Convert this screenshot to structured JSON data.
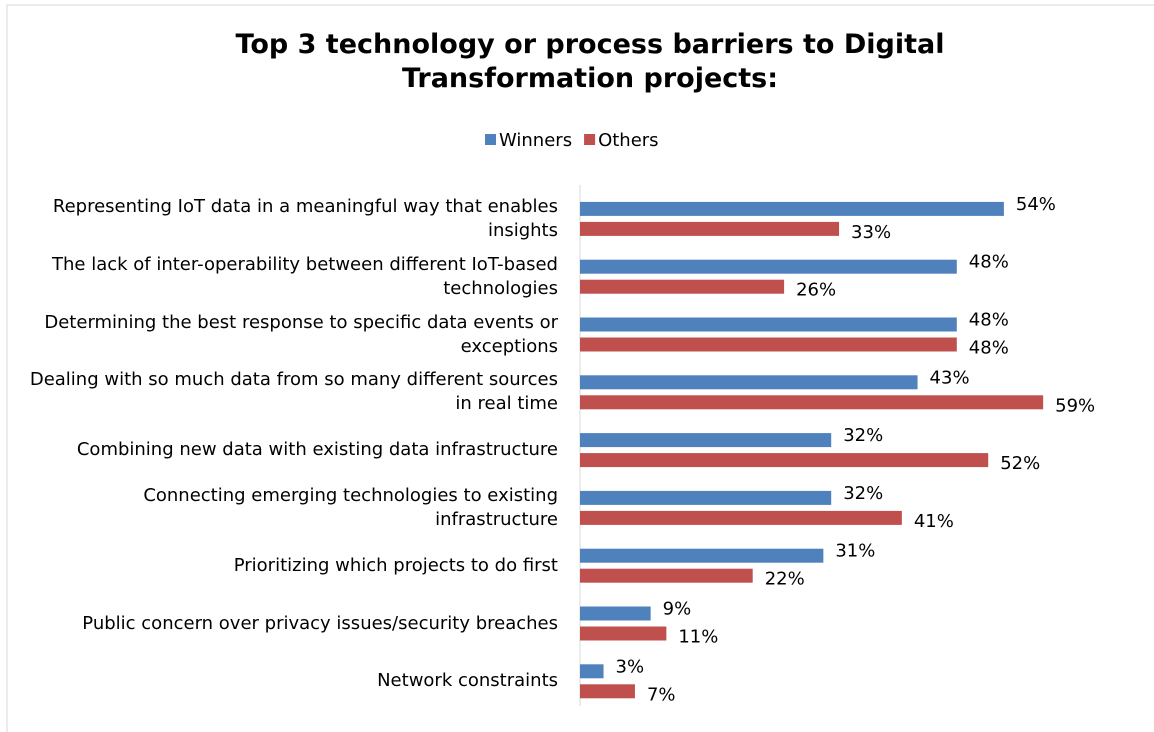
{
  "chart_data": {
    "type": "hbar",
    "title": "Top 3 technology or process barriers to Digital Transformation projects:",
    "categories": [
      "Representing IoT data in a meaningful way that enables insights",
      "The lack of inter-operability between different IoT-based technologies",
      "Determining the best response to specific data events or exceptions",
      "Dealing with so much data from so many different sources in real time",
      "Combining new data with existing data infrastructure",
      "Connecting emerging technologies to existing infrastructure",
      "Prioritizing which projects to do first",
      "Public concern over privacy issues/security breaches",
      "Network constraints"
    ],
    "series": [
      {
        "name": "Winners",
        "color": "#4f81bd",
        "values": [
          54,
          48,
          48,
          43,
          32,
          32,
          31,
          9,
          3
        ],
        "value_labels": [
          "54%",
          "48%",
          "48%",
          "43%",
          "32%",
          "32%",
          "31%",
          "9%",
          "3%"
        ]
      },
      {
        "name": "Others",
        "color": "#c0504d",
        "values": [
          33,
          26,
          48,
          59,
          52,
          41,
          22,
          11,
          7
        ],
        "value_labels": [
          "33%",
          "26%",
          "48%",
          "59%",
          "52%",
          "41%",
          "22%",
          "11%",
          "7%"
        ]
      }
    ],
    "legend": "top"
  }
}
